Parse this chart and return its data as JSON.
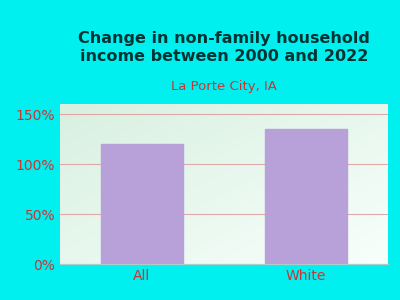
{
  "title": "Change in non-family household\nincome between 2000 and 2022",
  "subtitle": "La Porte City, IA",
  "categories": [
    "All",
    "White"
  ],
  "values": [
    120,
    135
  ],
  "bar_color": "#b8a0d8",
  "title_color": "#003333",
  "subtitle_color": "#cc3333",
  "tick_color": "#cc3333",
  "outer_bg": "#00f0f0",
  "plot_bg_left": "#d8f0e0",
  "plot_bg_right": "#f0f8f4",
  "ylim": [
    0,
    160
  ],
  "yticks": [
    0,
    50,
    100,
    150
  ],
  "ytick_labels": [
    "0%",
    "50%",
    "100%",
    "150%"
  ],
  "grid_color": "#e0a0a0",
  "figsize": [
    4.0,
    3.0
  ],
  "dpi": 100
}
